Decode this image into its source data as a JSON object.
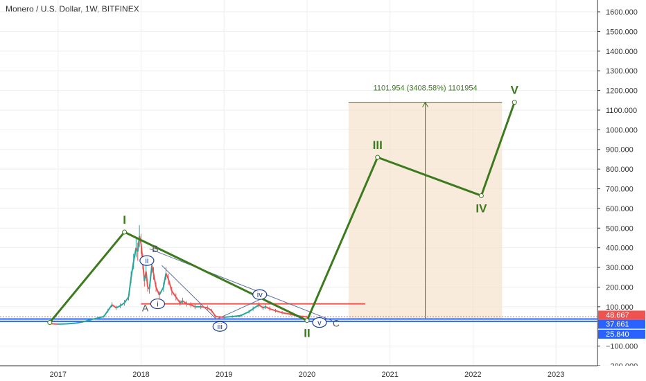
{
  "title": "Monero / U.S. Dollar, 1W, BITFINEX",
  "colors": {
    "up": "#26a69a",
    "down": "#ef5350",
    "elliott": "#3c7a1e",
    "trend": "#5c6f9a",
    "accent_blue": "#2962ff",
    "projection": "#f7e3cc",
    "axis_text": "#333333",
    "grid": "#eeeeee"
  },
  "chart_data": {
    "type": "line",
    "instrument": "Monero / U.S. Dollar",
    "timeframe": "1W",
    "exchange": "BITFINEX",
    "x_ticks": [
      "2017",
      "2018",
      "2019",
      "2020",
      "2021",
      "2022",
      "2023"
    ],
    "y_ticks": [
      "1600.000",
      "1500.000",
      "1400.000",
      "1300.000",
      "1200.000",
      "1100.000",
      "1000.000",
      "900.000",
      "800.000",
      "700.000",
      "600.000",
      "500.000",
      "400.000",
      "300.000",
      "200.000",
      "100.000",
      "−100.000",
      "−200.000"
    ],
    "ylim": [
      -200,
      1660
    ],
    "xlim": [
      2016.3,
      2023.5
    ],
    "price_labels": [
      {
        "text": "48.667",
        "value": 48.667,
        "color": "#ef5350"
      },
      {
        "text": "37.661",
        "value": 37.661,
        "color": "#2962ff"
      },
      {
        "text": "25.840",
        "value": 25.84,
        "color": "#2962ff"
      }
    ],
    "price_series": [
      [
        2016.9,
        14
      ],
      [
        2017.0,
        12
      ],
      [
        2017.1,
        13
      ],
      [
        2017.2,
        16
      ],
      [
        2017.3,
        23
      ],
      [
        2017.4,
        35
      ],
      [
        2017.5,
        45
      ],
      [
        2017.55,
        50
      ],
      [
        2017.6,
        80
      ],
      [
        2017.65,
        110
      ],
      [
        2017.7,
        95
      ],
      [
        2017.75,
        105
      ],
      [
        2017.8,
        120
      ],
      [
        2017.85,
        150
      ],
      [
        2017.88,
        250
      ],
      [
        2017.91,
        330
      ],
      [
        2017.94,
        400
      ],
      [
        2017.96,
        380
      ],
      [
        2017.98,
        460
      ],
      [
        2018.0,
        420
      ],
      [
        2018.02,
        330
      ],
      [
        2018.04,
        230
      ],
      [
        2018.06,
        280
      ],
      [
        2018.08,
        200
      ],
      [
        2018.1,
        190
      ],
      [
        2018.13,
        310
      ],
      [
        2018.15,
        270
      ],
      [
        2018.18,
        200
      ],
      [
        2018.22,
        160
      ],
      [
        2018.27,
        200
      ],
      [
        2018.3,
        270
      ],
      [
        2018.33,
        240
      ],
      [
        2018.37,
        180
      ],
      [
        2018.42,
        150
      ],
      [
        2018.47,
        120
      ],
      [
        2018.5,
        130
      ],
      [
        2018.55,
        115
      ],
      [
        2018.6,
        110
      ],
      [
        2018.65,
        100
      ],
      [
        2018.72,
        100
      ],
      [
        2018.8,
        95
      ],
      [
        2018.85,
        80
      ],
      [
        2018.9,
        50
      ],
      [
        2018.95,
        48
      ],
      [
        2019.0,
        47
      ],
      [
        2019.1,
        50
      ],
      [
        2019.2,
        55
      ],
      [
        2019.3,
        75
      ],
      [
        2019.35,
        90
      ],
      [
        2019.42,
        110
      ],
      [
        2019.47,
        95
      ],
      [
        2019.5,
        100
      ],
      [
        2019.55,
        90
      ],
      [
        2019.62,
        80
      ],
      [
        2019.7,
        70
      ],
      [
        2019.8,
        62
      ],
      [
        2019.87,
        55
      ],
      [
        2019.95,
        50
      ],
      [
        2020.0,
        48.7
      ]
    ],
    "wave_points": [
      {
        "label": "I",
        "x": 2017.8,
        "y": 480
      },
      {
        "label": "II",
        "x": 2020.0,
        "y": 30
      },
      {
        "label": "III",
        "x": 2020.85,
        "y": 860
      },
      {
        "label": "IV",
        "x": 2022.1,
        "y": 665
      },
      {
        "label": "V",
        "x": 2022.5,
        "y": 1140
      }
    ],
    "wave_start": {
      "x": 2016.9,
      "y": 20
    },
    "sub_wave_labels": [
      {
        "label": "i",
        "x": 2018.2,
        "y": 115,
        "circled": true
      },
      {
        "label": "ii",
        "x": 2018.07,
        "y": 335,
        "circled": true
      },
      {
        "label": "iii",
        "x": 2018.95,
        "y": 0,
        "circled": true
      },
      {
        "label": "iv",
        "x": 2019.43,
        "y": 162,
        "circled": true
      },
      {
        "label": "v",
        "x": 2020.15,
        "y": 20,
        "circled": true
      },
      {
        "label": "A",
        "x": 2018.05,
        "y": 95,
        "circled": false
      },
      {
        "label": "B",
        "x": 2018.17,
        "y": 395,
        "circled": false
      },
      {
        "label": "C",
        "x": 2020.35,
        "y": 17,
        "circled": false
      }
    ],
    "projection": {
      "label": "1101.954 (3408.58%) 1101954",
      "x_start": 2020.5,
      "x_end": 2022.35,
      "y_low": 35,
      "y_high": 1140
    },
    "trendlines": [
      {
        "x1": 2017.8,
        "y1": 480,
        "x2": 2020.0,
        "y2": 30
      },
      {
        "x1": 2018.1,
        "y1": 395,
        "x2": 2020.3,
        "y2": 30
      },
      {
        "x1": 2018.9,
        "y1": 35,
        "x2": 2019.5,
        "y2": 150
      },
      {
        "x1": 2018.25,
        "y1": 310,
        "x2": 2018.9,
        "y2": 40
      }
    ],
    "horizontal_lines": [
      {
        "y": 115,
        "x_start": 2018.0,
        "x_end": 2020.7,
        "color": "#ef5350"
      },
      {
        "y": 48.667,
        "x_start": 2016.3,
        "x_end": 2023.5,
        "color": "#ef5350",
        "dashed": true
      },
      {
        "y": 37.661,
        "x_start": 2016.3,
        "x_end": 2023.5,
        "color": "#2962ff"
      },
      {
        "y": 25.84,
        "x_start": 2016.3,
        "x_end": 2023.5,
        "color": "#2962ff"
      }
    ]
  }
}
